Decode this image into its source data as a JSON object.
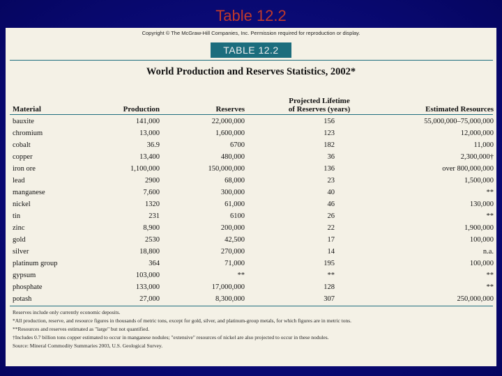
{
  "slide": {
    "title": "Table 12.2"
  },
  "document": {
    "copyright": "Copyright © The McGraw-Hill Companies, Inc. Permission required for reproduction or display.",
    "table_label": "TABLE 12.2",
    "table_title": "World Production and Reserves Statistics, 2002*",
    "headers": {
      "material": "Material",
      "production": "Production",
      "reserves": "Reserves",
      "lifetime_line1": "Projected Lifetime",
      "lifetime_line2": "of Reserves (years)",
      "estimated": "Estimated Resources"
    },
    "rows": [
      {
        "material": "bauxite",
        "production": "141,000",
        "reserves": "22,000,000",
        "lifetime": "156",
        "estimated": "55,000,000–75,000,000"
      },
      {
        "material": "chromium",
        "production": "13,000",
        "reserves": "1,600,000",
        "lifetime": "123",
        "estimated": "12,000,000"
      },
      {
        "material": "cobalt",
        "production": "36.9",
        "reserves": "6700",
        "lifetime": "182",
        "estimated": "11,000"
      },
      {
        "material": "copper",
        "production": "13,400",
        "reserves": "480,000",
        "lifetime": "36",
        "estimated": "2,300,000†"
      },
      {
        "material": "iron ore",
        "production": "1,100,000",
        "reserves": "150,000,000",
        "lifetime": "136",
        "estimated": "over 800,000,000"
      },
      {
        "material": "lead",
        "production": "2900",
        "reserves": "68,000",
        "lifetime": "23",
        "estimated": "1,500,000"
      },
      {
        "material": "manganese",
        "production": "7,600",
        "reserves": "300,000",
        "lifetime": "40",
        "estimated": "**"
      },
      {
        "material": "nickel",
        "production": "1320",
        "reserves": "61,000",
        "lifetime": "46",
        "estimated": "130,000"
      },
      {
        "material": "tin",
        "production": "231",
        "reserves": "6100",
        "lifetime": "26",
        "estimated": "**"
      },
      {
        "material": "zinc",
        "production": "8,900",
        "reserves": "200,000",
        "lifetime": "22",
        "estimated": "1,900,000"
      },
      {
        "material": "gold",
        "production": "2530",
        "reserves": "42,500",
        "lifetime": "17",
        "estimated": "100,000"
      },
      {
        "material": "silver",
        "production": "18,800",
        "reserves": "270,000",
        "lifetime": "14",
        "estimated": "n.a."
      },
      {
        "material": "platinum group",
        "production": "364",
        "reserves": "71,000",
        "lifetime": "195",
        "estimated": "100,000"
      },
      {
        "material": "gypsum",
        "production": "103,000",
        "reserves": "**",
        "lifetime": "**",
        "estimated": "**"
      },
      {
        "material": "phosphate",
        "production": "133,000",
        "reserves": "17,000,000",
        "lifetime": "128",
        "estimated": "**"
      },
      {
        "material": "potash",
        "production": "27,000",
        "reserves": "8,300,000",
        "lifetime": "307",
        "estimated": "250,000,000"
      }
    ],
    "notes": [
      "Reserves include only currently economic deposits.",
      "*All production, reserve, and resource figures in thousands of metric tons, except for gold, silver, and platinum-group metals, for which figures are in metric tons.",
      "**Resources and reserves estimated as \"large\" but not quantified.",
      "†Includes 0.7 billion tons copper estimated to occur in manganese nodules; \"extensive\" resources of nickel are also projected to occur in these nodules.",
      "Source: Mineral Commodity Summaries 2003, U.S. Geological Survey."
    ]
  }
}
